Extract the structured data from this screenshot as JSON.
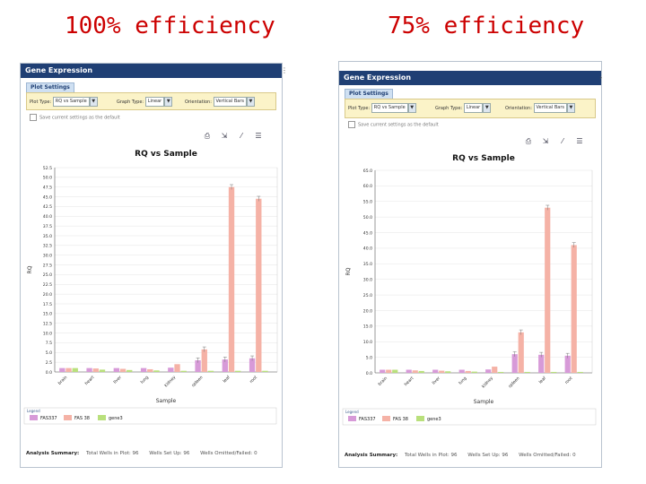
{
  "headings": {
    "left": "100% efficiency",
    "right": "75% efficiency"
  },
  "colors": {
    "heading": "#cc0000",
    "titlebar": "#1f3f74",
    "settings_bg": "#fbf3c8"
  },
  "panels": [
    {
      "window_title": "Gene Expression",
      "tab_label": "Plot Settings",
      "plot_type_label": "Plot Type:",
      "plot_type_value": "RQ vs Sample",
      "graph_type_label": "Graph Type:",
      "graph_type_value": "Linear",
      "orientation_label": "Orientation:",
      "orientation_value": "Vertical Bars",
      "save_default_label": "Save current settings as the default",
      "toolbar_icons": [
        "print-icon",
        "export-icon",
        "chart-options-icon",
        "table-icon"
      ],
      "analysis_label": "Analysis Summary:",
      "analysis_items": [
        "Total Wells in Plot: 96",
        "Wells Set Up: 96",
        "Wells Omitted/Failed: 0"
      ],
      "chart_data": {
        "type": "bar",
        "title": "RQ vs Sample",
        "xlabel": "Sample",
        "ylabel": "RQ",
        "ylim": [
          0,
          52.5
        ],
        "ytick_step": 2.5,
        "grid": true,
        "legend_placement": "bottom-left",
        "legend_title": "Legend",
        "categories": [
          "brain",
          "heart",
          "liver",
          "lung",
          "kidney",
          "spleen",
          "leaf",
          "root"
        ],
        "series": [
          {
            "name": "FAS337",
            "color": "#d79ad8",
            "values": [
              1.0,
              1.0,
              1.0,
              1.0,
              1.1,
              3.0,
              3.2,
              3.5
            ]
          },
          {
            "name": "FAS 38",
            "color": "#f5b2a6",
            "values": [
              1.0,
              0.9,
              0.8,
              0.7,
              2.0,
              5.8,
              47.5,
              44.5
            ]
          },
          {
            "name": "gene3",
            "color": "#b9e07c",
            "values": [
              1.0,
              0.6,
              0.5,
              0.4,
              0.3,
              0.3,
              0.3,
              0.3
            ]
          }
        ]
      }
    },
    {
      "window_title": "Gene Expression",
      "tab_label": "Plot Settings",
      "plot_type_label": "Plot Type:",
      "plot_type_value": "RQ vs Sample",
      "graph_type_label": "Graph Type:",
      "graph_type_value": "Linear",
      "orientation_label": "Orientation:",
      "orientation_value": "Vertical Bars",
      "save_default_label": "Save current settings as the default",
      "toolbar_icons": [
        "print-icon",
        "export-icon",
        "chart-options-icon",
        "table-icon"
      ],
      "analysis_label": "Analysis Summary:",
      "analysis_items": [
        "Total Wells in Plot: 96",
        "Wells Set Up: 96",
        "Wells Omitted/Failed: 0"
      ],
      "chart_data": {
        "type": "bar",
        "title": "RQ vs Sample",
        "xlabel": "Sample",
        "ylabel": "RQ",
        "ylim": [
          0,
          65
        ],
        "ytick_step": 5,
        "grid": true,
        "legend_placement": "bottom-left",
        "legend_title": "Legend",
        "categories": [
          "brain",
          "heart",
          "liver",
          "lung",
          "kidney",
          "spleen",
          "leaf",
          "root"
        ],
        "series": [
          {
            "name": "FAS337",
            "color": "#d79ad8",
            "values": [
              1.0,
              1.0,
              1.0,
              1.0,
              1.1,
              6.0,
              5.8,
              5.5
            ]
          },
          {
            "name": "FAS 38",
            "color": "#f5b2a6",
            "values": [
              1.0,
              0.8,
              0.7,
              0.6,
              2.0,
              13.0,
              53.0,
              41.0
            ]
          },
          {
            "name": "gene3",
            "color": "#b9e07c",
            "values": [
              1.0,
              0.6,
              0.5,
              0.4,
              0.3,
              0.3,
              0.3,
              0.3
            ]
          }
        ]
      }
    }
  ]
}
